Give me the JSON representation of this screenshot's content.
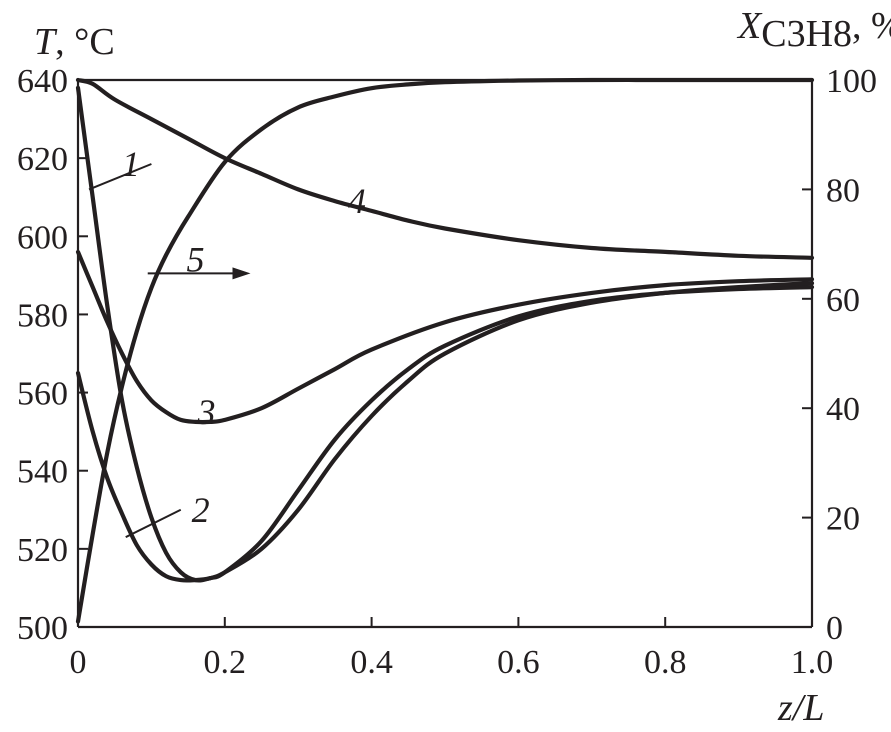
{
  "chart_data": {
    "type": "line",
    "x_axis": {
      "label_var": "z/L",
      "range": [
        0,
        1
      ],
      "ticks": [
        0,
        0.2,
        0.4,
        0.6,
        0.8,
        1.0
      ],
      "tick_labels": [
        "0",
        "0.2",
        "0.4",
        "0.6",
        "0.8",
        "1.0"
      ]
    },
    "y_left": {
      "label_var": "T",
      "label_unit": ", °C",
      "range": [
        500,
        640
      ],
      "ticks": [
        500,
        520,
        540,
        560,
        580,
        600,
        620,
        640
      ],
      "tick_labels": [
        "500",
        "520",
        "540",
        "560",
        "580",
        "600",
        "620",
        "640"
      ]
    },
    "y_right": {
      "label_var": "X",
      "label_sub": "C3H8",
      "label_unit": ", %",
      "range": [
        0,
        100
      ],
      "ticks": [
        0,
        20,
        40,
        60,
        80,
        100
      ],
      "tick_labels": [
        "0",
        "20",
        "40",
        "60",
        "80",
        "100"
      ]
    },
    "grid": false,
    "series": [
      {
        "name": "1",
        "axis": "left",
        "x": [
          0,
          0.02,
          0.04,
          0.06,
          0.08,
          0.1,
          0.12,
          0.14,
          0.16,
          0.18,
          0.2,
          0.25,
          0.3,
          0.35,
          0.4,
          0.45,
          0.5,
          0.6,
          0.7,
          0.8,
          0.9,
          1.0
        ],
        "y": [
          638,
          610,
          582,
          558,
          541,
          528,
          519,
          514,
          512,
          512.5,
          514,
          522,
          535,
          548,
          558,
          566,
          572,
          579.5,
          583.5,
          585.5,
          586.5,
          587
        ]
      },
      {
        "name": "2",
        "axis": "left",
        "x": [
          0,
          0.02,
          0.04,
          0.06,
          0.08,
          0.1,
          0.12,
          0.14,
          0.16,
          0.18,
          0.2,
          0.25,
          0.3,
          0.35,
          0.4,
          0.45,
          0.5,
          0.6,
          0.7,
          0.8,
          0.9,
          1.0
        ],
        "y": [
          565,
          550,
          538,
          529,
          521,
          516,
          513,
          512,
          512,
          512.5,
          514,
          520,
          530,
          543,
          554,
          563,
          570,
          578.5,
          583,
          585.5,
          587,
          588
        ]
      },
      {
        "name": "3",
        "axis": "left",
        "x": [
          0,
          0.02,
          0.04,
          0.06,
          0.08,
          0.1,
          0.12,
          0.14,
          0.16,
          0.18,
          0.2,
          0.25,
          0.3,
          0.35,
          0.4,
          0.5,
          0.6,
          0.7,
          0.8,
          0.9,
          1.0
        ],
        "y": [
          596,
          587,
          578,
          570,
          563,
          558,
          555,
          553,
          552.5,
          552.5,
          553,
          556,
          561,
          566,
          571,
          578,
          582.5,
          585.5,
          587.5,
          588.5,
          589
        ]
      },
      {
        "name": "4",
        "axis": "left",
        "x": [
          0,
          0.02,
          0.05,
          0.1,
          0.15,
          0.2,
          0.25,
          0.3,
          0.35,
          0.4,
          0.45,
          0.5,
          0.6,
          0.7,
          0.8,
          0.9,
          1.0
        ],
        "y": [
          640,
          639,
          635,
          630,
          625,
          620,
          616,
          612,
          609,
          606.5,
          604,
          602,
          599,
          597,
          596,
          595,
          594.5
        ]
      },
      {
        "name": "5",
        "axis": "right",
        "x": [
          0,
          0.02,
          0.04,
          0.06,
          0.08,
          0.1,
          0.12,
          0.15,
          0.2,
          0.25,
          0.3,
          0.35,
          0.4,
          0.45,
          0.5,
          0.6,
          0.7,
          0.8,
          0.9,
          1.0
        ],
        "y": [
          1,
          17,
          32,
          44,
          54,
          62,
          68,
          75,
          85,
          91,
          95,
          97,
          98.5,
          99.2,
          99.6,
          99.9,
          100,
          100,
          100,
          100
        ]
      }
    ],
    "labels": [
      {
        "text": "1",
        "x": 0.072,
        "y": 618.5
      },
      {
        "text": "2",
        "x": 0.167,
        "y": 530
      },
      {
        "text": "3",
        "x": 0.175,
        "y": 555
      },
      {
        "text": "4",
        "x": 0.38,
        "y": 609
      },
      {
        "text": "5",
        "x": 0.16,
        "y": 594
      }
    ],
    "leaders": [
      {
        "from": [
          0.1,
          618.5
        ],
        "to": [
          0.015,
          612
        ]
      },
      {
        "from": [
          0.14,
          530
        ],
        "to": [
          0.065,
          523
        ]
      }
    ],
    "arrow": {
      "from": [
        0.095,
        590.5
      ],
      "to": [
        0.235,
        590.5
      ]
    }
  }
}
